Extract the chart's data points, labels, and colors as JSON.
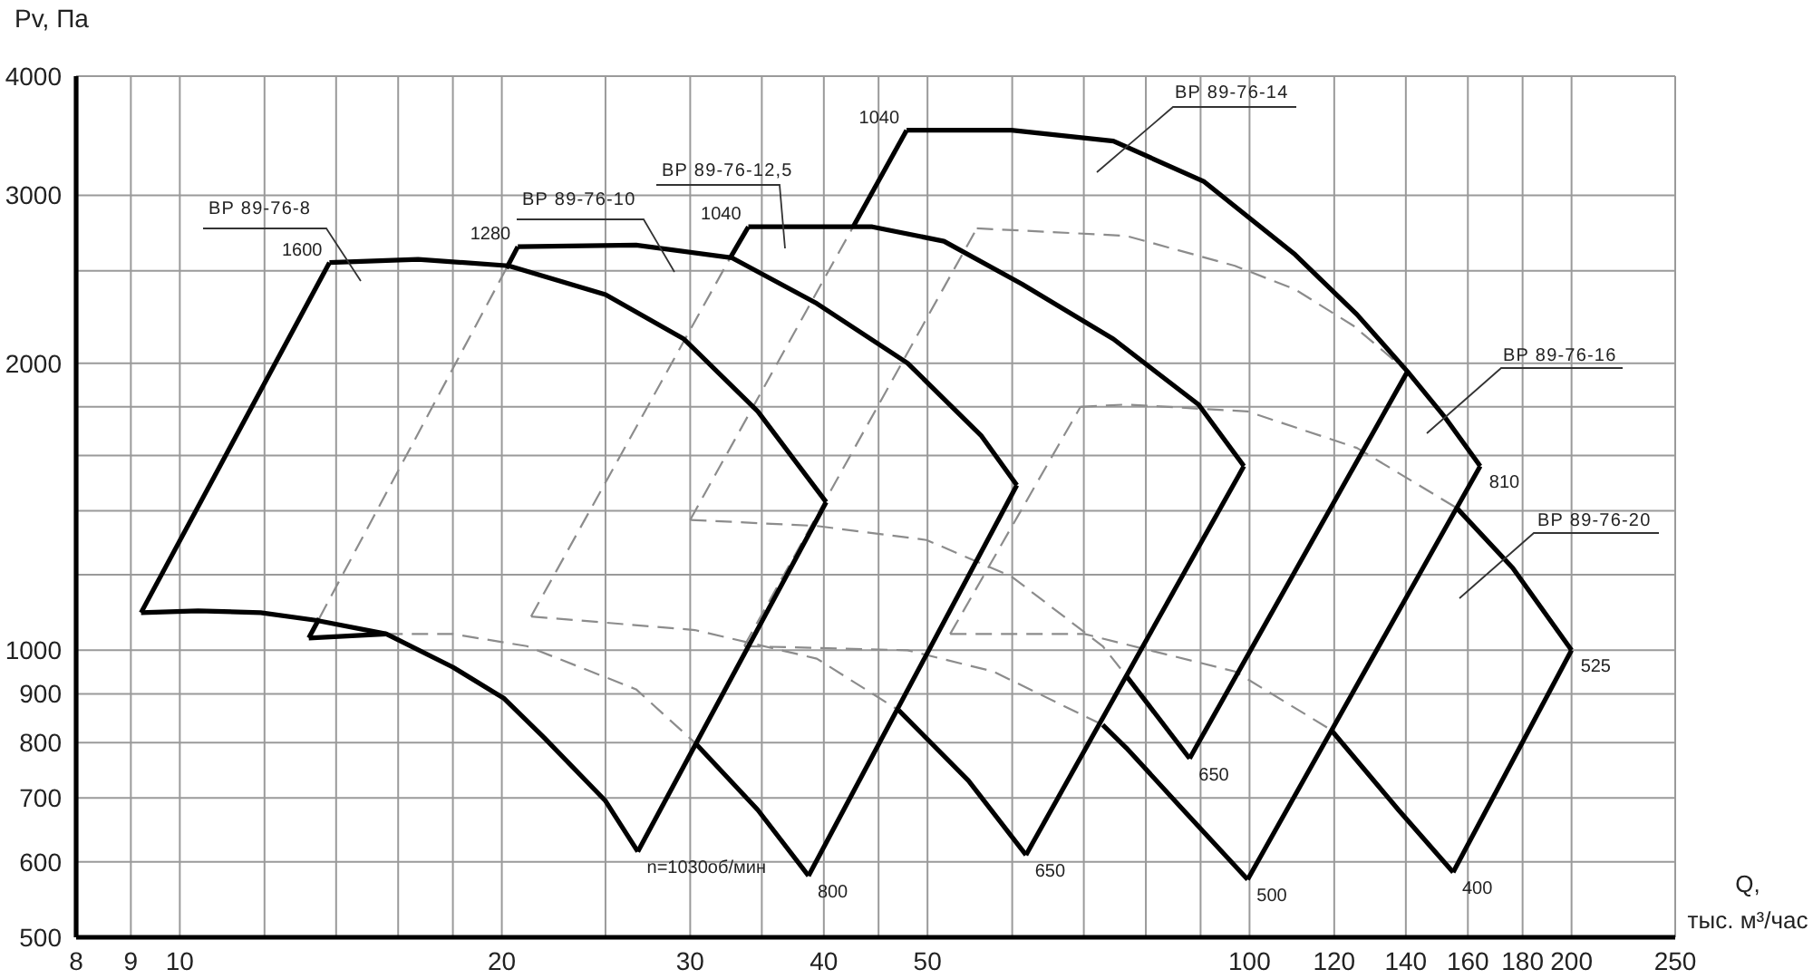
{
  "chart_data": {
    "type": "line",
    "xlabel": "Q,\nтыс. м³/час",
    "ylabel": "Pv, Па",
    "log": "xy",
    "grid": true,
    "xlim": [
      8,
      250
    ],
    "ylim": [
      500,
      4000
    ],
    "xticks": [
      8,
      9,
      10,
      {
        "value": 12,
        "label": null
      },
      {
        "value": 14,
        "label": null
      },
      {
        "value": 16,
        "label": null
      },
      {
        "value": 18,
        "label": null
      },
      20,
      {
        "value": 25,
        "label": null
      },
      30,
      {
        "value": 35,
        "label": null
      },
      40,
      {
        "value": 45,
        "label": null
      },
      50,
      {
        "value": 60,
        "label": null
      },
      {
        "value": 70,
        "label": null
      },
      {
        "value": 80,
        "label": null
      },
      {
        "value": 90,
        "label": null
      },
      100,
      120,
      140,
      160,
      180,
      200,
      250
    ],
    "yticks": [
      500,
      600,
      700,
      800,
      900,
      1000,
      {
        "value": 1200,
        "label": null
      },
      {
        "value": 1400,
        "label": null
      },
      {
        "value": 1600,
        "label": null
      },
      {
        "value": 1800,
        "label": null
      },
      2000,
      {
        "value": 2500,
        "label": null
      },
      3000,
      4000
    ],
    "series": [
      {
        "line_style": "dashed",
        "color": "#8c8c8c",
        "x": [
          15.6,
          18,
          21.1,
          26.7,
          30.3
        ],
        "values": [
          1040,
          1040,
          1010,
          910,
          800
        ]
      },
      {
        "line_style": "dashed",
        "color": "#8c8c8c",
        "x": [
          13.5,
          20.2
        ],
        "values": [
          1080,
          2515
        ]
      },
      {
        "line_style": "dashed",
        "color": "#8c8c8c",
        "x": [
          21.3,
          30.3,
          39.4,
          47.0
        ],
        "values": [
          1085,
          1050,
          980,
          865
        ]
      },
      {
        "line_style": "dashed",
        "color": "#8c8c8c",
        "x": [
          21.3,
          32.7
        ],
        "values": [
          1085,
          2580
        ]
      },
      {
        "line_style": "dashed",
        "color": "#8c8c8c",
        "x": [
          30.0,
          39.4,
          49.9,
          59.9,
          72.9,
          76.7
        ],
        "values": [
          1370,
          1350,
          1305,
          1195,
          1010,
          940
        ]
      },
      {
        "line_style": "dashed",
        "color": "#8c8c8c",
        "x": [
          30.0,
          42.6
        ],
        "values": [
          1370,
          2780
        ]
      },
      {
        "line_style": "dashed",
        "color": "#8c8c8c",
        "x": [
          33.7,
          47.9,
          57.6,
          72.9
        ],
        "values": [
          1010,
          1000,
          950,
          835
        ]
      },
      {
        "line_style": "dashed",
        "color": "#8c8c8c",
        "x": [
          33.7,
          55.6
        ],
        "values": [
          1010,
          2770
        ]
      },
      {
        "line_style": "dashed",
        "color": "#8c8c8c",
        "x": [
          55.6,
          76.7,
          96.9,
          110.3,
          125,
          140.5
        ],
        "values": [
          2770,
          2720,
          2530,
          2390,
          2190,
          1960
        ]
      },
      {
        "line_style": "dashed",
        "color": "#8c8c8c",
        "x": [
          52.5,
          70.1,
          96.9,
          119.2
        ],
        "values": [
          1040,
          1040,
          950,
          825
        ]
      },
      {
        "line_style": "dashed",
        "color": "#8c8c8c",
        "x": [
          52.5,
          69.5
        ],
        "values": [
          1040,
          1800
        ]
      },
      {
        "line_style": "dashed",
        "color": "#8c8c8c",
        "x": [
          69.5,
          76.7,
          99.6,
          126,
          156.2
        ],
        "values": [
          1800,
          1810,
          1780,
          1630,
          1410
        ]
      },
      {
        "line_style": "solid",
        "color": "#000000",
        "x": [
          9.2,
          13.8
        ],
        "values": [
          1095,
          2550
        ]
      },
      {
        "line_style": "solid",
        "color": "#000000",
        "x": [
          13.8,
          16.7,
          20.3,
          25,
          29.6,
          34.7,
          40.2
        ],
        "values": [
          2550,
          2570,
          2530,
          2360,
          2120,
          1780,
          1430
        ]
      },
      {
        "line_style": "solid",
        "color": "#000000",
        "x": [
          26.8,
          40.2
        ],
        "values": [
          615,
          1430
        ]
      },
      {
        "line_style": "solid",
        "color": "#000000",
        "x": [
          9.2,
          10.4,
          11.9,
          13.4,
          15.6,
          18,
          20.1,
          21.9,
          25,
          26.8
        ],
        "values": [
          1095,
          1100,
          1095,
          1075,
          1040,
          960,
          890,
          810,
          695,
          615
        ]
      },
      {
        "line_style": "solid",
        "color": "#000000",
        "x": [
          20.2,
          20.7
        ],
        "values": [
          2515,
          2650
        ]
      },
      {
        "line_style": "solid",
        "color": "#000000",
        "x": [
          20.7,
          26.7,
          32.8,
          39.4,
          47.9,
          56.1,
          60.6
        ],
        "values": [
          2650,
          2660,
          2580,
          2310,
          2000,
          1680,
          1490
        ]
      },
      {
        "line_style": "solid",
        "color": "#000000",
        "x": [
          38.7,
          60.6
        ],
        "values": [
          580,
          1490
        ]
      },
      {
        "line_style": "solid",
        "color": "#000000",
        "x": [
          30.3,
          34.7,
          38.7
        ],
        "values": [
          800,
          680,
          580
        ]
      },
      {
        "line_style": "solid",
        "color": "#000000",
        "x": [
          13.2,
          15.6
        ],
        "values": [
          1030,
          1040
        ]
      },
      {
        "line_style": "solid",
        "color": "#000000",
        "x": [
          13.2,
          13.5
        ],
        "values": [
          1030,
          1080
        ]
      },
      {
        "line_style": "solid",
        "color": "#000000",
        "x": [
          32.7,
          34.0
        ],
        "values": [
          2580,
          2780
        ]
      },
      {
        "line_style": "solid",
        "color": "#000000",
        "x": [
          34.0,
          44.4,
          51.8,
          61.3,
          74.6,
          89.6,
          98.8
        ],
        "values": [
          2780,
          2780,
          2685,
          2420,
          2120,
          1810,
          1560
        ]
      },
      {
        "line_style": "solid",
        "color": "#000000",
        "x": [
          61.8,
          98.8
        ],
        "values": [
          610,
          1560
        ]
      },
      {
        "line_style": "solid",
        "color": "#000000",
        "x": [
          47.0,
          54.6,
          61.8
        ],
        "values": [
          865,
          730,
          610
        ]
      },
      {
        "line_style": "solid",
        "color": "#000000",
        "x": [
          42.6,
          47.8
        ],
        "values": [
          2780,
          3510
        ]
      },
      {
        "line_style": "solid",
        "color": "#000000",
        "x": [
          47.8,
          59.9,
          74.6,
          90.7,
          110.3,
          126,
          140.5,
          152,
          164.3
        ],
        "values": [
          3510,
          3510,
          3420,
          3100,
          2600,
          2250,
          1960,
          1760,
          1560
        ]
      },
      {
        "line_style": "solid",
        "color": "#000000",
        "x": [
          87.9,
          140.5
        ],
        "values": [
          770,
          1960
        ]
      },
      {
        "line_style": "solid",
        "color": "#000000",
        "x": [
          76.7,
          87.9
        ],
        "values": [
          940,
          770
        ]
      },
      {
        "line_style": "solid",
        "color": "#000000",
        "x": [
          99.6,
          164.3
        ],
        "values": [
          575,
          1560
        ]
      },
      {
        "line_style": "solid",
        "color": "#000000",
        "x": [
          72.9,
          76.7,
          86.2,
          99.6
        ],
        "values": [
          835,
          790,
          685,
          575
        ]
      },
      {
        "line_style": "solid",
        "color": "#000000",
        "x": [
          156.2,
          176.2,
          200
        ],
        "values": [
          1410,
          1220,
          1000
        ]
      },
      {
        "line_style": "solid",
        "color": "#000000",
        "x": [
          155,
          200
        ],
        "values": [
          585,
          1000
        ]
      },
      {
        "line_style": "solid",
        "color": "#000000",
        "x": [
          119.2,
          137.8,
          155
        ],
        "values": [
          825,
          680,
          585
        ]
      }
    ],
    "annotations": [
      "ВР 89-76-8",
      "ВР 89-76-10",
      "ВР 89-76-12,5",
      "ВР 89-76-14",
      "ВР 89-76-16",
      "ВР 89-76-20",
      {
        "text": "1600",
        "x": 13.8,
        "y": 2550
      },
      {
        "text": "n=1030об/мин",
        "x": 26.8,
        "y": 615
      },
      {
        "text": "1280",
        "x": 20.7,
        "y": 2650
      },
      {
        "text": "800",
        "x": 38.7,
        "y": 580
      },
      {
        "text": "1040",
        "x": 34.0,
        "y": 2780
      },
      {
        "text": "650",
        "x": 61.8,
        "y": 610
      },
      {
        "text": "1040",
        "x": 47.8,
        "y": 3510
      },
      {
        "text": "650",
        "x": 87.9,
        "y": 770
      },
      {
        "text": "810",
        "x": 164.3,
        "y": 1560
      },
      {
        "text": "500",
        "x": 99.6,
        "y": 575
      },
      {
        "text": "525",
        "x": 200,
        "y": 1000
      },
      {
        "text": "400",
        "x": 155,
        "y": 585
      }
    ]
  }
}
